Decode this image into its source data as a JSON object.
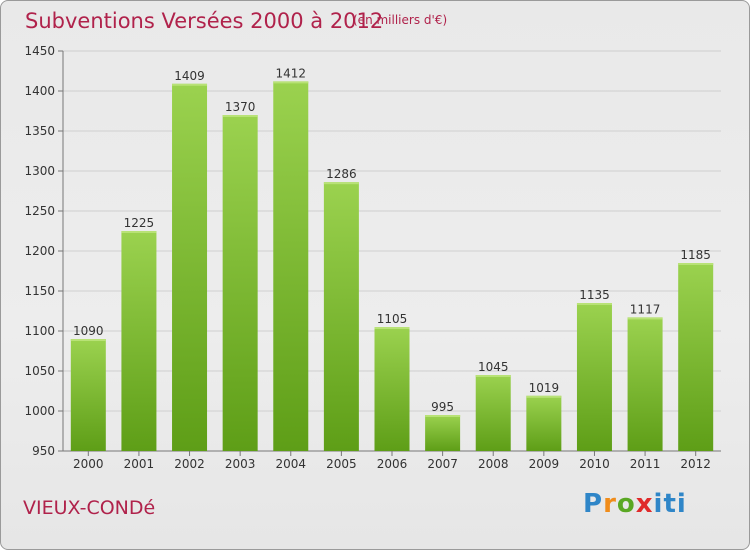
{
  "header": {
    "title": "Subventions Versées 2000 à 2012",
    "subtitle": "(en milliers d'€)"
  },
  "footer": {
    "place": "VIEUX-CONDé",
    "logo_text": "Proxiti"
  },
  "colors": {
    "title": "#b0224b",
    "bar_top": "#9bd24f",
    "bar_bottom": "#5e9e17",
    "grid": "#cccccc"
  },
  "chart_data": {
    "type": "bar",
    "title": "Subventions Versées 2000 à 2012",
    "subtitle": "(en milliers d'€)",
    "xlabel": "",
    "ylabel": "",
    "categories": [
      "2000",
      "2001",
      "2002",
      "2003",
      "2004",
      "2005",
      "2006",
      "2007",
      "2008",
      "2009",
      "2010",
      "2011",
      "2012"
    ],
    "values": [
      1090,
      1225,
      1409,
      1370,
      1412,
      1286,
      1105,
      995,
      1045,
      1019,
      1135,
      1117,
      1185
    ],
    "ylim": [
      950,
      1450
    ],
    "yticks": [
      950,
      1000,
      1050,
      1100,
      1150,
      1200,
      1250,
      1300,
      1350,
      1400,
      1450
    ],
    "grid": true,
    "legend": "none"
  }
}
